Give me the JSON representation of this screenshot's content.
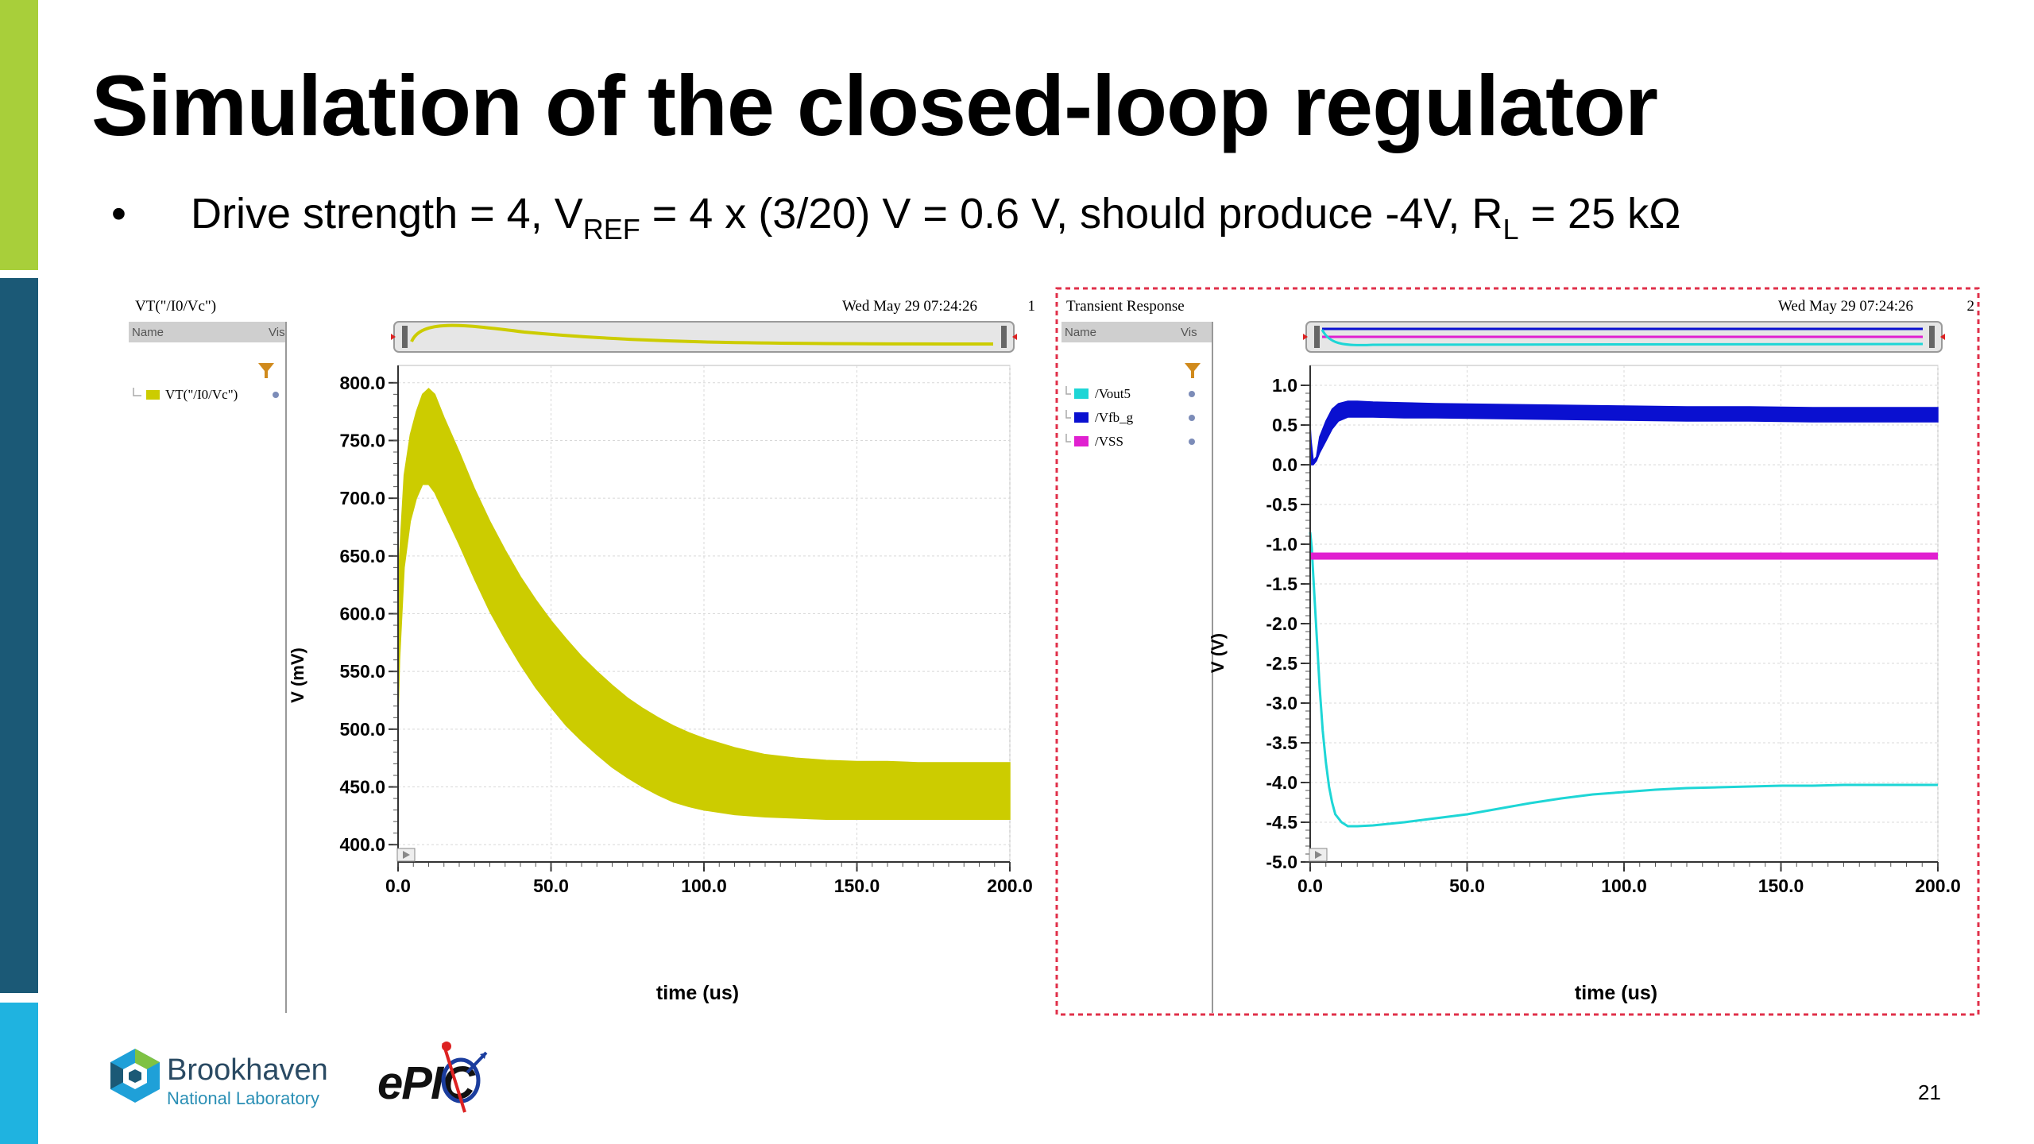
{
  "slide": {
    "title": "Simulation of the closed-loop regulator",
    "bullet": {
      "marker": "•",
      "t1": "Drive strength = 4, V",
      "sub1": "REF",
      "t2": " = 4 x (3/20) V = 0.6 V, should produce -4V, R",
      "sub2": "L",
      "t3": " = 25 kΩ"
    },
    "page_number": "21",
    "logos": {
      "bnl_name": "Brookhaven",
      "bnl_sub": "National Laboratory",
      "epic": "ePIC"
    },
    "colors": {
      "bar_top": "#a8cf3a",
      "bar_mid": "#1b5976",
      "bar_bottom": "#1fb3e0",
      "selection_border": "#e0304a"
    }
  },
  "left_panel": {
    "window_title": "VT(\"/I0/Vc\")",
    "timestamp": "Wed May 29 07:24:26",
    "panel_number": "1",
    "col_name": "Name",
    "col_vis": "Vis",
    "legend": [
      {
        "label": "VT(\"/I0/Vc\")",
        "color": "#cccc00"
      }
    ]
  },
  "right_panel": {
    "window_title": "Transient Response",
    "timestamp": "Wed May 29 07:24:26",
    "panel_number": "2",
    "col_name": "Name",
    "col_vis": "Vis",
    "legend": [
      {
        "label": "/Vout5",
        "color": "#1ed6d6"
      },
      {
        "label": "/Vfb_g",
        "color": "#0a10d0"
      },
      {
        "label": "/VSS",
        "color": "#e020d0"
      }
    ]
  },
  "chart_data": [
    {
      "type": "area",
      "xlabel": "time (us)",
      "ylabel": "V (mV)",
      "xlim": [
        0,
        200
      ],
      "ylim": [
        385,
        815
      ],
      "xticks": [
        "0.0",
        "50.0",
        "100.0",
        "150.0",
        "200.0"
      ],
      "yticks": [
        "400.0",
        "450.0",
        "500.0",
        "550.0",
        "600.0",
        "650.0",
        "700.0",
        "750.0",
        "800.0"
      ],
      "grid": true,
      "series": [
        {
          "name": "VT(\"/I0/Vc\")",
          "color": "#cccc00",
          "x": [
            0,
            0.5,
            2,
            4,
            6,
            8,
            10,
            12,
            15,
            20,
            25,
            30,
            35,
            40,
            45,
            50,
            55,
            60,
            65,
            70,
            75,
            80,
            85,
            90,
            95,
            100,
            110,
            120,
            130,
            140,
            150,
            160,
            170,
            180,
            190,
            200
          ],
          "upper": [
            600,
            650,
            720,
            755,
            775,
            790,
            795,
            790,
            770,
            740,
            708,
            680,
            655,
            632,
            612,
            594,
            578,
            563,
            550,
            538,
            527,
            518,
            510,
            503,
            497,
            492,
            484,
            478,
            475,
            473,
            472,
            472,
            471,
            471,
            471,
            471
          ],
          "lower": [
            510,
            560,
            640,
            680,
            700,
            712,
            712,
            705,
            688,
            660,
            630,
            602,
            578,
            556,
            536,
            519,
            503,
            490,
            478,
            467,
            458,
            450,
            443,
            437,
            433,
            430,
            426,
            424,
            423,
            422,
            422,
            422,
            422,
            422,
            422,
            422
          ]
        }
      ]
    },
    {
      "type": "line",
      "xlabel": "time (us)",
      "ylabel": "V (V)",
      "xlim": [
        0,
        200
      ],
      "ylim": [
        -5.0,
        1.25
      ],
      "xticks": [
        "0.0",
        "50.0",
        "100.0",
        "150.0",
        "200.0"
      ],
      "yticks": [
        "1.0",
        "0.5",
        "0.0",
        "-0.5",
        "-1.0",
        "-1.5",
        "-2.0",
        "-2.5",
        "-3.0",
        "-3.5",
        "-4.0",
        "-4.5",
        "-5.0"
      ],
      "grid": true,
      "series": [
        {
          "name": "/Vout5",
          "color": "#1ed6d6",
          "x": [
            0,
            0.5,
            1,
            2,
            3,
            4,
            5,
            6,
            7,
            8,
            10,
            12,
            15,
            20,
            30,
            40,
            50,
            60,
            70,
            80,
            90,
            100,
            110,
            120,
            130,
            140,
            150,
            160,
            170,
            180,
            190,
            200
          ],
          "y": [
            -0.85,
            -1.05,
            -1.4,
            -2.1,
            -2.8,
            -3.35,
            -3.75,
            -4.05,
            -4.25,
            -4.4,
            -4.5,
            -4.55,
            -4.55,
            -4.54,
            -4.5,
            -4.45,
            -4.4,
            -4.33,
            -4.26,
            -4.2,
            -4.15,
            -4.12,
            -4.09,
            -4.07,
            -4.06,
            -4.05,
            -4.04,
            -4.04,
            -4.03,
            -4.03,
            -4.03,
            -4.03
          ]
        },
        {
          "name": "/Vfb_g",
          "color": "#0a10d0",
          "x": [
            0,
            0.3,
            1,
            2,
            3,
            5,
            7,
            9,
            12,
            15,
            20,
            30,
            40,
            60,
            80,
            100,
            120,
            140,
            160,
            180,
            200
          ],
          "upper": [
            0.5,
            0.3,
            0.05,
            0.1,
            0.35,
            0.55,
            0.7,
            0.77,
            0.8,
            0.8,
            0.79,
            0.78,
            0.77,
            0.76,
            0.75,
            0.74,
            0.73,
            0.73,
            0.72,
            0.72,
            0.72
          ],
          "lower": [
            0.0,
            0.0,
            0.0,
            0.05,
            0.15,
            0.3,
            0.45,
            0.55,
            0.6,
            0.6,
            0.6,
            0.59,
            0.59,
            0.58,
            0.57,
            0.56,
            0.55,
            0.55,
            0.54,
            0.54,
            0.54
          ]
        },
        {
          "name": "/VSS",
          "color": "#e020d0",
          "x": [
            0,
            200
          ],
          "y": [
            -1.15,
            -1.15
          ]
        }
      ]
    }
  ]
}
